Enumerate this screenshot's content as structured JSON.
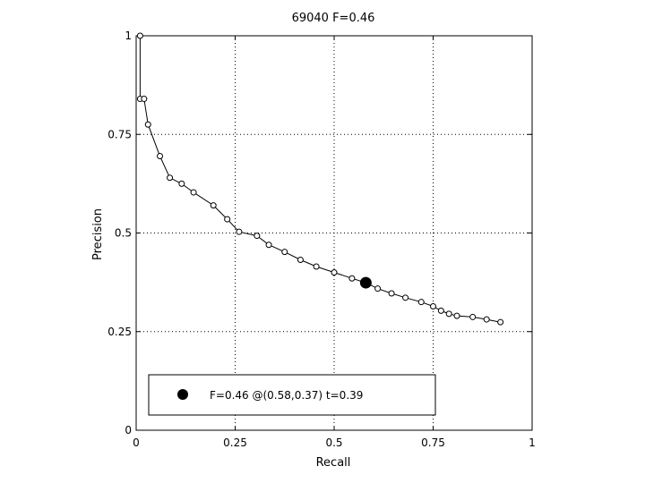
{
  "chart_data": {
    "type": "line",
    "title": "69040 F=0.46",
    "xlabel": "Recall",
    "ylabel": "Precision",
    "xlim": [
      0,
      1
    ],
    "ylim": [
      0,
      1
    ],
    "grid": true,
    "x_ticks": [
      0,
      0.25,
      0.5,
      0.75,
      1
    ],
    "x_tick_labels": [
      "0",
      "0.25",
      "0.5",
      "0.75",
      "1"
    ],
    "y_ticks": [
      0,
      0.25,
      0.5,
      0.75,
      1
    ],
    "y_tick_labels": [
      "0",
      "0.25",
      "0.5",
      "0.75",
      "1"
    ],
    "series": [
      {
        "marker": "open-circle",
        "color": "#000000",
        "points": [
          [
            0.01,
            1.0
          ],
          [
            0.01,
            0.84
          ],
          [
            0.02,
            0.84
          ],
          [
            0.03,
            0.775
          ],
          [
            0.06,
            0.695
          ],
          [
            0.085,
            0.64
          ],
          [
            0.115,
            0.625
          ],
          [
            0.145,
            0.603
          ],
          [
            0.195,
            0.57
          ],
          [
            0.23,
            0.535
          ],
          [
            0.26,
            0.503
          ],
          [
            0.305,
            0.493
          ],
          [
            0.335,
            0.47
          ],
          [
            0.375,
            0.452
          ],
          [
            0.415,
            0.432
          ],
          [
            0.455,
            0.415
          ],
          [
            0.5,
            0.4
          ],
          [
            0.545,
            0.385
          ],
          [
            0.58,
            0.374
          ],
          [
            0.61,
            0.359
          ],
          [
            0.645,
            0.347
          ],
          [
            0.68,
            0.336
          ],
          [
            0.72,
            0.325
          ],
          [
            0.75,
            0.314
          ],
          [
            0.77,
            0.303
          ],
          [
            0.79,
            0.295
          ],
          [
            0.81,
            0.29
          ],
          [
            0.85,
            0.287
          ],
          [
            0.885,
            0.281
          ],
          [
            0.92,
            0.274
          ]
        ]
      }
    ],
    "highlight_point": {
      "x": 0.58,
      "y": 0.374,
      "marker": "filled-circle",
      "color": "#000000"
    },
    "legend": {
      "text": "F=0.46 @(0.58,0.37) t=0.39",
      "placement": "bottom-center"
    }
  }
}
